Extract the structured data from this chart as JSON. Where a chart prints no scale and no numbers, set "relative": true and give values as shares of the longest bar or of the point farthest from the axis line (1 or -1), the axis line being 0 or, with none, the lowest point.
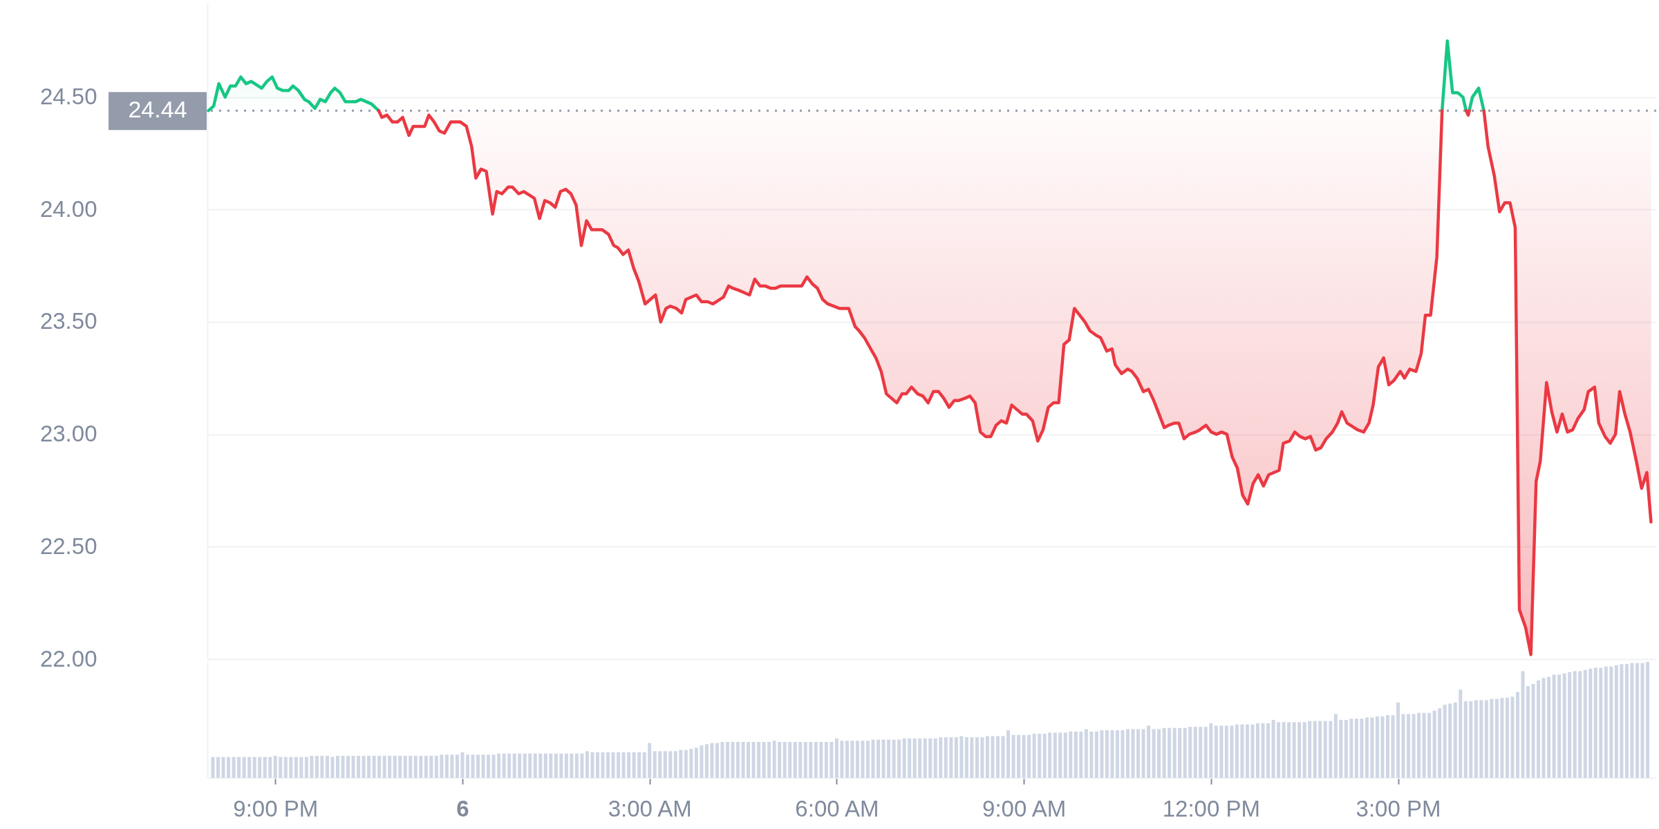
{
  "chart_data": [
    {
      "type": "line",
      "series": [
        {
          "color": "#16c784",
          "x": [
            "--01-05T19:59",
            "--01-05T20:04",
            "--01-05T20:09",
            "--01-05T20:15",
            "--01-05T20:20",
            "--01-05T20:25",
            "--01-05T20:30",
            "--01-05T20:35",
            "--01-05T20:40",
            "--01-05T20:50",
            "--01-05T20:55",
            "--01-05T21:00",
            "--01-05T21:05",
            "--01-05T21:10",
            "--01-05T21:16",
            "--01-05T21:20",
            "--01-05T21:25",
            "--01-05T21:31",
            "--01-05T21:35",
            "--01-05T21:41",
            "--01-05T21:46",
            "--01-05T21:51",
            "--01-05T21:56",
            "--01-05T22:00",
            "--01-05T22:05",
            "--01-05T22:10",
            "--01-05T22:15",
            "--01-05T22:20",
            "--01-05T22:25",
            "--01-05T22:35",
            "--01-05T22:42",
            "--01-05T22:45",
            "--01-06T15:40",
            "--01-06T15:45",
            "--01-06T15:50",
            "--01-06T15:55",
            "--01-06T16:00",
            "--01-06T16:03",
            "--01-06T16:05",
            "--01-06T16:06",
            "--01-06T16:09",
            "--01-06T16:15",
            "--01-06T16:20"
          ],
          "values": [
            24.44,
            24.46,
            24.56,
            24.5,
            24.55,
            24.55,
            24.59,
            24.56,
            24.57,
            24.54,
            24.57,
            24.59,
            24.54,
            24.53,
            24.53,
            24.55,
            24.53,
            24.49,
            24.48,
            24.45,
            24.49,
            24.48,
            24.52,
            24.54,
            24.52,
            24.48,
            24.48,
            24.48,
            24.49,
            24.47,
            24.44,
            null,
            24.44,
            24.75,
            24.52,
            24.52,
            24.5,
            24.44,
            null,
            24.44,
            24.5,
            24.54,
            24.44
          ],
          "lower": [
            24.44,
            24.44,
            24.44,
            24.44,
            24.44,
            24.44,
            24.44,
            24.44,
            24.44,
            24.44,
            24.44,
            24.44,
            24.44,
            24.44,
            24.44,
            24.44,
            24.44,
            24.44,
            24.44,
            24.44,
            24.44,
            24.44,
            24.44,
            24.44,
            24.44,
            24.44,
            24.44,
            24.44,
            24.44,
            24.44,
            24.44,
            null,
            24.44,
            24.44,
            24.44,
            24.44,
            24.44,
            24.44,
            null,
            24.44,
            24.44,
            24.44,
            24.44
          ],
          "upper": [
            24.44,
            24.46,
            24.56,
            24.5,
            24.55,
            24.55,
            24.59,
            24.56,
            24.57,
            24.54,
            24.57,
            24.59,
            24.54,
            24.53,
            24.53,
            24.55,
            24.53,
            24.49,
            24.48,
            24.45,
            24.49,
            24.48,
            24.52,
            24.54,
            24.52,
            24.48,
            24.48,
            24.48,
            24.49,
            24.47,
            24.44,
            null,
            24.44,
            24.75,
            24.52,
            24.52,
            24.5,
            24.44,
            null,
            24.44,
            24.5,
            24.54,
            24.44
          ]
        },
        {
          "color": "#ea3943",
          "x": [
            "--01-05T22:42",
            "--01-05T22:45",
            "--01-05T22:50",
            "--01-05T22:55",
            "--01-05T23:00",
            "--01-05T23:05",
            "--01-05T23:11",
            "--01-05T23:15",
            "--01-05T23:21",
            "--01-05T23:26",
            "--01-05T23:30",
            "--01-05T23:35",
            "--01-05T23:40",
            "--01-05T23:45",
            "--01-05T23:51",
            "--01-06T00:00",
            "--01-06T00:06",
            "--01-06T00:11",
            "--01-06T00:15",
            "--01-06T00:20",
            "--01-06T00:25",
            "--01-06T00:31",
            "--01-06T00:35",
            "--01-06T00:40",
            "--01-06T00:46",
            "--01-06T00:50",
            "--01-06T00:56",
            "--01-06T01:01",
            "--01-06T01:11",
            "--01-06T01:16",
            "--01-06T01:21",
            "--01-06T01:26",
            "--01-06T01:31",
            "--01-06T01:36",
            "--01-06T01:41",
            "--01-06T01:46",
            "--01-06T01:51",
            "--01-06T01:56",
            "--01-06T02:01",
            "--01-06T02:06",
            "--01-06T02:12",
            "--01-06T02:16",
            "--01-06T02:22",
            "--01-06T02:27",
            "--01-06T02:31",
            "--01-06T02:36",
            "--01-06T02:41",
            "--01-06T02:46",
            "--01-06T02:51",
            "--01-06T02:57",
            "--01-06T03:07",
            "--01-06T03:12",
            "--01-06T03:17",
            "--01-06T03:21",
            "--01-06T03:27",
            "--01-06T03:32",
            "--01-06T03:36",
            "--01-06T03:41",
            "--01-06T03:46",
            "--01-06T03:51",
            "--01-06T03:57",
            "--01-06T04:02",
            "--01-06T04:12",
            "--01-06T04:17",
            "--01-06T04:21",
            "--01-06T04:27",
            "--01-06T04:37",
            "--01-06T04:42",
            "--01-06T04:47",
            "--01-06T04:52",
            "--01-06T04:57",
            "--01-06T05:02",
            "--01-06T05:07",
            "--01-06T05:17",
            "--01-06T05:27",
            "--01-06T05:32",
            "--01-06T05:37",
            "--01-06T05:42",
            "--01-06T05:47",
            "--01-06T05:52",
            "--01-06T06:03",
            "--01-06T06:12",
            "--01-06T06:18",
            "--01-06T06:22",
            "--01-06T06:27",
            "--01-06T06:33",
            "--01-06T06:38",
            "--01-06T06:43",
            "--01-06T06:48",
            "--01-06T06:53",
            "--01-06T06:58",
            "--01-06T07:03",
            "--01-06T07:07",
            "--01-06T07:12",
            "--01-06T07:18",
            "--01-06T07:23",
            "--01-06T07:28",
            "--01-06T07:33",
            "--01-06T07:38",
            "--01-06T07:43",
            "--01-06T07:48",
            "--01-06T07:53",
            "--01-06T07:57",
            "--01-06T08:03",
            "--01-06T08:08",
            "--01-06T08:13",
            "--01-06T08:18",
            "--01-06T08:23",
            "--01-06T08:28",
            "--01-06T08:33",
            "--01-06T08:38",
            "--01-06T08:43",
            "--01-06T08:48",
            "--01-06T08:58",
            "--01-06T09:02",
            "--01-06T09:08",
            "--01-06T09:13",
            "--01-06T09:18",
            "--01-06T09:23",
            "--01-06T09:28",
            "--01-06T09:33",
            "--01-06T09:38",
            "--01-06T09:43",
            "--01-06T09:48",
            "--01-06T09:53",
            "--01-06T09:58",
            "--01-06T10:03",
            "--01-06T10:09",
            "--01-06T10:13",
            "--01-06T10:19",
            "--01-06T10:24",
            "--01-06T10:27",
            "--01-06T10:33",
            "--01-06T10:39",
            "--01-06T10:43",
            "--01-06T10:48",
            "--01-06T10:54",
            "--01-06T10:59",
            "--01-06T11:04",
            "--01-06T11:14",
            "--01-06T11:18",
            "--01-06T11:24",
            "--01-06T11:28",
            "--01-06T11:33",
            "--01-06T11:38",
            "--01-06T11:44",
            "--01-06T11:48",
            "--01-06T11:54",
            "--01-06T11:59",
            "--01-06T12:04",
            "--01-06T12:09",
            "--01-06T12:14",
            "--01-06T12:19",
            "--01-06T12:24",
            "--01-06T12:29",
            "--01-06T12:34",
            "--01-06T12:39",
            "--01-06T12:44",
            "--01-06T12:49",
            "--01-06T12:54",
            "--01-06T13:04",
            "--01-06T13:08",
            "--01-06T13:14",
            "--01-06T13:19",
            "--01-06T13:24",
            "--01-06T13:29",
            "--01-06T13:34",
            "--01-06T13:39",
            "--01-06T13:44",
            "--01-06T13:49",
            "--01-06T13:55",
            "--01-06T14:00",
            "--01-06T14:04",
            "--01-06T14:09",
            "--01-06T14:19",
            "--01-06T14:25",
            "--01-06T14:30",
            "--01-06T14:34",
            "--01-06T14:39",
            "--01-06T14:44",
            "--01-06T14:49",
            "--01-06T14:54",
            "--01-06T15:00",
            "--01-06T15:04",
            "--01-06T15:09",
            "--01-06T15:15",
            "--01-06T15:20",
            "--01-06T15:24",
            "--01-06T15:29",
            "--01-06T15:35",
            "--01-06T15:40",
            "--01-06T15:45",
            "--01-06T16:03",
            "--01-06T16:05",
            "--01-06T16:06",
            "--01-06T16:09",
            "--01-06T16:20",
            "--01-06T16:24",
            "--01-06T16:30",
            "--01-06T16:35",
            "--01-06T16:40",
            "--01-06T16:45",
            "--01-06T16:50",
            "--01-06T16:54",
            "--01-06T17:00",
            "--01-06T17:05",
            "--01-06T17:10",
            "--01-06T17:14",
            "--01-06T17:20",
            "--01-06T17:25",
            "--01-06T17:30",
            "--01-06T17:35",
            "--01-06T17:40",
            "--01-06T17:45",
            "--01-06T17:50",
            "--01-06T17:56",
            "--01-06T18:00",
            "--01-06T18:06",
            "--01-06T18:10",
            "--01-06T18:16",
            "--01-06T18:21",
            "--01-06T18:26",
            "--01-06T18:30",
            "--01-06T18:35",
            "--01-06T18:40",
            "--01-06T18:46",
            "--01-06T18:51",
            "--01-06T18:56",
            "--01-06T19:00"
          ],
          "values": [
            24.44,
            24.41,
            24.42,
            24.39,
            24.39,
            24.41,
            24.33,
            24.37,
            24.37,
            24.37,
            24.42,
            24.39,
            24.35,
            24.34,
            24.39,
            24.39,
            24.37,
            24.28,
            24.14,
            24.18,
            24.17,
            23.98,
            24.08,
            24.07,
            24.1,
            24.1,
            24.07,
            24.08,
            24.05,
            23.96,
            24.04,
            24.03,
            24.01,
            24.08,
            24.09,
            24.07,
            24.02,
            23.84,
            23.95,
            23.91,
            23.91,
            23.91,
            23.89,
            23.84,
            23.83,
            23.8,
            23.82,
            23.74,
            23.68,
            23.58,
            23.62,
            23.5,
            23.56,
            23.57,
            23.56,
            23.54,
            23.6,
            23.61,
            23.62,
            23.59,
            23.59,
            23.58,
            23.61,
            23.66,
            23.65,
            23.64,
            23.62,
            23.69,
            23.66,
            23.66,
            23.65,
            23.65,
            23.66,
            23.66,
            23.66,
            23.7,
            23.67,
            23.65,
            23.6,
            23.58,
            23.56,
            23.56,
            23.48,
            23.46,
            23.43,
            23.38,
            23.34,
            23.28,
            23.18,
            23.16,
            23.14,
            23.18,
            23.18,
            23.21,
            23.18,
            23.17,
            23.14,
            23.19,
            23.19,
            23.16,
            23.12,
            23.15,
            23.15,
            23.16,
            23.17,
            23.14,
            23.01,
            22.99,
            22.99,
            23.04,
            23.06,
            23.05,
            23.13,
            23.09,
            23.09,
            23.06,
            22.97,
            23.02,
            23.12,
            23.14,
            23.14,
            23.4,
            23.42,
            23.56,
            23.53,
            23.5,
            23.46,
            23.44,
            23.43,
            23.37,
            23.38,
            23.31,
            23.27,
            23.29,
            23.28,
            23.25,
            23.19,
            23.2,
            23.15,
            23.03,
            23.04,
            23.05,
            23.05,
            22.98,
            23.0,
            23.01,
            23.02,
            23.04,
            23.01,
            23.0,
            23.01,
            23.0,
            22.9,
            22.85,
            22.73,
            22.69,
            22.78,
            22.82,
            22.77,
            22.82,
            22.84,
            22.96,
            22.97,
            23.01,
            22.99,
            22.98,
            22.99,
            22.93,
            22.94,
            22.98,
            23.01,
            23.05,
            23.1,
            23.05,
            23.02,
            23.01,
            23.05,
            23.13,
            23.3,
            23.34,
            23.22,
            23.24,
            23.28,
            23.25,
            23.29,
            23.28,
            23.36,
            23.53,
            23.53,
            23.79,
            24.44,
            null,
            24.44,
            24.42,
            24.44,
            null,
            24.44,
            24.28,
            24.15,
            23.99,
            24.03,
            24.03,
            23.92,
            22.22,
            22.14,
            22.02,
            22.79,
            22.88,
            23.23,
            23.1,
            23.01,
            23.09,
            23.01,
            23.02,
            23.07,
            23.11,
            23.19,
            23.21,
            23.05,
            22.99,
            22.96,
            23.0,
            23.19,
            23.09,
            23.01,
            22.88,
            22.76,
            22.83,
            22.61
          ],
          "lower": [
            24.44,
            24.41,
            24.42,
            24.39,
            24.39,
            24.41,
            24.33,
            24.37,
            24.37,
            24.37,
            24.42,
            24.39,
            24.35,
            24.34,
            24.39,
            24.39,
            24.37,
            24.28,
            24.14,
            24.18,
            24.17,
            23.98,
            24.08,
            24.07,
            24.1,
            24.1,
            24.07,
            24.08,
            24.05,
            23.96,
            24.04,
            24.03,
            24.01,
            24.08,
            24.09,
            24.07,
            24.02,
            23.84,
            23.95,
            23.91,
            23.91,
            23.91,
            23.89,
            23.84,
            23.83,
            23.8,
            23.82,
            23.74,
            23.68,
            23.58,
            23.62,
            23.5,
            23.56,
            23.57,
            23.56,
            23.54,
            23.6,
            23.61,
            23.62,
            23.59,
            23.59,
            23.58,
            23.61,
            23.66,
            23.65,
            23.64,
            23.62,
            23.69,
            23.66,
            23.66,
            23.65,
            23.65,
            23.66,
            23.66,
            23.66,
            23.7,
            23.67,
            23.65,
            23.6,
            23.58,
            23.56,
            23.56,
            23.48,
            23.46,
            23.43,
            23.38,
            23.34,
            23.28,
            23.18,
            23.16,
            23.14,
            23.18,
            23.18,
            23.21,
            23.18,
            23.17,
            23.14,
            23.19,
            23.19,
            23.16,
            23.12,
            23.15,
            23.15,
            23.16,
            23.17,
            23.14,
            23.01,
            22.99,
            22.99,
            23.04,
            23.06,
            23.05,
            23.13,
            23.09,
            23.09,
            23.06,
            22.97,
            23.02,
            23.12,
            23.14,
            23.14,
            23.4,
            23.42,
            23.56,
            23.53,
            23.5,
            23.46,
            23.44,
            23.43,
            23.37,
            23.38,
            23.31,
            23.27,
            23.29,
            23.28,
            23.25,
            23.19,
            23.2,
            23.15,
            23.03,
            23.04,
            23.05,
            23.05,
            22.98,
            23.0,
            23.01,
            23.02,
            23.04,
            23.01,
            23.0,
            23.01,
            23.0,
            22.9,
            22.85,
            22.73,
            22.69,
            22.78,
            22.82,
            22.77,
            22.82,
            22.84,
            22.96,
            22.97,
            23.01,
            22.99,
            22.98,
            22.99,
            22.93,
            22.94,
            22.98,
            23.01,
            23.05,
            23.1,
            23.05,
            23.02,
            23.01,
            23.05,
            23.13,
            23.3,
            23.34,
            23.22,
            23.24,
            23.28,
            23.25,
            23.29,
            23.28,
            23.36,
            23.53,
            23.53,
            23.79,
            24.44,
            null,
            null,
            null,
            null,
            null,
            24.44,
            24.28,
            24.15,
            23.99,
            24.03,
            24.03,
            23.92,
            22.22,
            22.14,
            22.02,
            22.79,
            22.88,
            23.23,
            23.1,
            23.01,
            23.09,
            23.01,
            23.02,
            23.07,
            23.11,
            23.19,
            23.21,
            23.05,
            22.99,
            22.96,
            23.0,
            23.19,
            23.09,
            23.01,
            22.88,
            22.76,
            22.83,
            22.61
          ],
          "upper": [
            24.44,
            24.44,
            24.44,
            24.44,
            24.44,
            24.44,
            24.44,
            24.44,
            24.44,
            24.44,
            24.44,
            24.44,
            24.44,
            24.44,
            24.44,
            24.44,
            24.44,
            24.44,
            24.44,
            24.44,
            24.44,
            24.44,
            24.44,
            24.44,
            24.44,
            24.44,
            24.44,
            24.44,
            24.44,
            24.44,
            24.44,
            24.44,
            24.44,
            24.44,
            24.44,
            24.44,
            24.44,
            24.44,
            24.44,
            24.44,
            24.44,
            24.44,
            24.44,
            24.44,
            24.44,
            24.44,
            24.44,
            24.44,
            24.44,
            24.44,
            24.44,
            24.44,
            24.44,
            24.44,
            24.44,
            24.44,
            24.44,
            24.44,
            24.44,
            24.44,
            24.44,
            24.44,
            24.44,
            24.44,
            24.44,
            24.44,
            24.44,
            24.44,
            24.44,
            24.44,
            24.44,
            24.44,
            24.44,
            24.44,
            24.44,
            24.44,
            24.44,
            24.44,
            24.44,
            24.44,
            24.44,
            24.44,
            24.44,
            24.44,
            24.44,
            24.44,
            24.44,
            24.44,
            24.44,
            24.44,
            24.44,
            24.44,
            24.44,
            24.44,
            24.44,
            24.44,
            24.44,
            24.44,
            24.44,
            24.44,
            24.44,
            24.44,
            24.44,
            24.44,
            24.44,
            24.44,
            24.44,
            24.44,
            24.44,
            24.44,
            24.44,
            24.44,
            24.44,
            24.44,
            24.44,
            24.44,
            24.44,
            24.44,
            24.44,
            24.44,
            24.44,
            24.44,
            24.44,
            24.44,
            24.44,
            24.44,
            24.44,
            24.44,
            24.44,
            24.44,
            24.44,
            24.44,
            24.44,
            24.44,
            24.44,
            24.44,
            24.44,
            24.44,
            24.44,
            24.44,
            24.44,
            24.44,
            24.44,
            24.44,
            24.44,
            24.44,
            24.44,
            24.44,
            24.44,
            24.44,
            24.44,
            24.44,
            24.44,
            24.44,
            24.44,
            24.44,
            24.44,
            24.44,
            24.44,
            24.44,
            24.44,
            24.44,
            24.44,
            24.44,
            24.44,
            24.44,
            24.44,
            24.44,
            24.44,
            24.44,
            24.44,
            24.44,
            24.44,
            24.44,
            24.44,
            24.44,
            24.44,
            24.44,
            24.44,
            24.44,
            24.44,
            24.44,
            24.44,
            24.44,
            24.44,
            24.44,
            24.44,
            24.44,
            24.44,
            24.44,
            24.44,
            null,
            null,
            null,
            null,
            null,
            24.44,
            24.44,
            24.44,
            24.44,
            24.44,
            24.44,
            24.44,
            24.44,
            24.44,
            24.44,
            24.44,
            24.44,
            24.44,
            24.44,
            24.44,
            24.44,
            24.44,
            24.44,
            24.44,
            24.44,
            24.44,
            24.44,
            24.44,
            24.44,
            24.44,
            24.44,
            24.44,
            24.44,
            24.44,
            24.44,
            24.44,
            24.44,
            24.44
          ]
        }
      ],
      "xlim": [
        "--01-05T19:58",
        "--01-06T19:05"
      ],
      "ylim": [
        22.0,
        24.92
      ],
      "yticks": [
        {
          "value": 22,
          "label": "22.00"
        },
        {
          "value": 22.5,
          "label": "22.50"
        },
        {
          "value": 23,
          "label": "23.00"
        },
        {
          "value": 23.5,
          "label": "23.50"
        },
        {
          "value": 24,
          "label": "24.00"
        },
        {
          "value": 24.5,
          "label": "24.50"
        }
      ],
      "tick_labels": "y",
      "grid": "y",
      "ref_lines": [
        {
          "axis": "y",
          "value": 24.44,
          "label": "24.44",
          "color": "#949cab",
          "line_style": "dotted"
        }
      ]
    },
    {
      "type": "bar",
      "relative": true,
      "color": "#cfd6e4",
      "x": [
        "--01-05T20:00",
        "--01-05T20:05",
        "--01-05T20:10",
        "--01-05T20:15",
        "--01-05T20:20",
        "--01-05T20:25",
        "--01-05T20:30",
        "--01-05T20:35",
        "--01-05T20:40",
        "--01-05T20:45",
        "--01-05T20:50",
        "--01-05T20:55",
        "--01-05T21:00",
        "--01-05T21:05",
        "--01-05T21:10",
        "--01-05T21:15",
        "--01-05T21:20",
        "--01-05T21:25",
        "--01-05T21:30",
        "--01-05T21:35",
        "--01-05T21:40",
        "--01-05T21:45",
        "--01-05T21:50",
        "--01-05T21:55",
        "--01-05T22:00",
        "--01-05T22:05",
        "--01-05T22:10",
        "--01-05T22:15",
        "--01-05T22:20",
        "--01-05T22:25",
        "--01-05T22:30",
        "--01-05T22:35",
        "--01-05T22:40",
        "--01-05T22:45",
        "--01-05T22:50",
        "--01-05T22:55",
        "--01-05T23:00",
        "--01-05T23:05",
        "--01-05T23:10",
        "--01-05T23:15",
        "--01-05T23:20",
        "--01-05T23:25",
        "--01-05T23:30",
        "--01-05T23:35",
        "--01-05T23:40",
        "--01-05T23:45",
        "--01-05T23:50",
        "--01-05T23:55",
        "--01-06T00:00",
        "--01-06T00:05",
        "--01-06T00:10",
        "--01-06T00:15",
        "--01-06T00:20",
        "--01-06T00:25",
        "--01-06T00:30",
        "--01-06T00:35",
        "--01-06T00:40",
        "--01-06T00:45",
        "--01-06T00:50",
        "--01-06T00:55",
        "--01-06T01:00",
        "--01-06T01:05",
        "--01-06T01:10",
        "--01-06T01:15",
        "--01-06T01:20",
        "--01-06T01:25",
        "--01-06T01:30",
        "--01-06T01:35",
        "--01-06T01:40",
        "--01-06T01:45",
        "--01-06T01:50",
        "--01-06T01:55",
        "--01-06T02:00",
        "--01-06T02:05",
        "--01-06T02:10",
        "--01-06T02:15",
        "--01-06T02:20",
        "--01-06T02:25",
        "--01-06T02:30",
        "--01-06T02:35",
        "--01-06T02:40",
        "--01-06T02:45",
        "--01-06T02:50",
        "--01-06T02:55",
        "--01-06T03:00",
        "--01-06T03:05",
        "--01-06T03:10",
        "--01-06T03:15",
        "--01-06T03:20",
        "--01-06T03:25",
        "--01-06T03:30",
        "--01-06T03:35",
        "--01-06T03:40",
        "--01-06T03:45",
        "--01-06T03:50",
        "--01-06T03:55",
        "--01-06T04:00",
        "--01-06T04:05",
        "--01-06T04:10",
        "--01-06T04:15",
        "--01-06T04:20",
        "--01-06T04:25",
        "--01-06T04:30",
        "--01-06T04:35",
        "--01-06T04:40",
        "--01-06T04:45",
        "--01-06T04:50",
        "--01-06T04:55",
        "--01-06T05:00",
        "--01-06T05:05",
        "--01-06T05:10",
        "--01-06T05:15",
        "--01-06T05:20",
        "--01-06T05:25",
        "--01-06T05:30",
        "--01-06T05:35",
        "--01-06T05:40",
        "--01-06T05:45",
        "--01-06T05:50",
        "--01-06T05:55",
        "--01-06T06:00",
        "--01-06T06:05",
        "--01-06T06:10",
        "--01-06T06:15",
        "--01-06T06:20",
        "--01-06T06:25",
        "--01-06T06:30",
        "--01-06T06:35",
        "--01-06T06:40",
        "--01-06T06:45",
        "--01-06T06:50",
        "--01-06T06:55",
        "--01-06T07:00",
        "--01-06T07:05",
        "--01-06T07:10",
        "--01-06T07:15",
        "--01-06T07:20",
        "--01-06T07:25",
        "--01-06T07:30",
        "--01-06T07:35",
        "--01-06T07:40",
        "--01-06T07:45",
        "--01-06T07:50",
        "--01-06T07:55",
        "--01-06T08:00",
        "--01-06T08:05",
        "--01-06T08:10",
        "--01-06T08:15",
        "--01-06T08:20",
        "--01-06T08:25",
        "--01-06T08:30",
        "--01-06T08:35",
        "--01-06T08:40",
        "--01-06T08:45",
        "--01-06T08:50",
        "--01-06T08:55",
        "--01-06T09:00",
        "--01-06T09:05",
        "--01-06T09:10",
        "--01-06T09:15",
        "--01-06T09:20",
        "--01-06T09:25",
        "--01-06T09:30",
        "--01-06T09:35",
        "--01-06T09:40",
        "--01-06T09:45",
        "--01-06T09:50",
        "--01-06T09:55",
        "--01-06T10:00",
        "--01-06T10:05",
        "--01-06T10:10",
        "--01-06T10:15",
        "--01-06T10:20",
        "--01-06T10:25",
        "--01-06T10:30",
        "--01-06T10:35",
        "--01-06T10:40",
        "--01-06T10:45",
        "--01-06T10:50",
        "--01-06T10:55",
        "--01-06T11:00",
        "--01-06T11:05",
        "--01-06T11:10",
        "--01-06T11:15",
        "--01-06T11:20",
        "--01-06T11:25",
        "--01-06T11:30",
        "--01-06T11:35",
        "--01-06T11:40",
        "--01-06T11:45",
        "--01-06T11:50",
        "--01-06T11:55",
        "--01-06T12:00",
        "--01-06T12:05",
        "--01-06T12:10",
        "--01-06T12:15",
        "--01-06T12:20",
        "--01-06T12:25",
        "--01-06T12:30",
        "--01-06T12:35",
        "--01-06T12:40",
        "--01-06T12:45",
        "--01-06T12:50",
        "--01-06T12:55",
        "--01-06T13:00",
        "--01-06T13:05",
        "--01-06T13:10",
        "--01-06T13:15",
        "--01-06T13:20",
        "--01-06T13:25",
        "--01-06T13:30",
        "--01-06T13:35",
        "--01-06T13:40",
        "--01-06T13:45",
        "--01-06T13:50",
        "--01-06T13:55",
        "--01-06T14:00",
        "--01-06T14:05",
        "--01-06T14:10",
        "--01-06T14:15",
        "--01-06T14:20",
        "--01-06T14:25",
        "--01-06T14:30",
        "--01-06T14:35",
        "--01-06T14:40",
        "--01-06T14:45",
        "--01-06T14:50",
        "--01-06T14:55",
        "--01-06T15:00",
        "--01-06T15:05",
        "--01-06T15:10",
        "--01-06T15:15",
        "--01-06T15:20",
        "--01-06T15:25",
        "--01-06T15:30",
        "--01-06T15:35",
        "--01-06T15:40",
        "--01-06T15:45",
        "--01-06T15:50",
        "--01-06T15:55",
        "--01-06T16:00",
        "--01-06T16:05",
        "--01-06T16:10",
        "--01-06T16:15",
        "--01-06T16:20",
        "--01-06T16:25",
        "--01-06T16:30",
        "--01-06T16:35",
        "--01-06T16:40",
        "--01-06T16:45",
        "--01-06T16:50",
        "--01-06T16:55",
        "--01-06T17:00",
        "--01-06T17:05",
        "--01-06T17:10",
        "--01-06T17:15",
        "--01-06T17:20",
        "--01-06T17:25",
        "--01-06T17:30",
        "--01-06T17:35",
        "--01-06T17:40",
        "--01-06T17:45",
        "--01-06T17:50",
        "--01-06T17:55",
        "--01-06T18:00",
        "--01-06T18:05",
        "--01-06T18:10",
        "--01-06T18:15",
        "--01-06T18:20",
        "--01-06T18:25",
        "--01-06T18:30",
        "--01-06T18:35",
        "--01-06T18:40",
        "--01-06T18:45",
        "--01-06T18:50",
        "--01-06T18:55",
        "--01-06T19:00"
      ],
      "values": [
        0.18,
        0.18,
        0.18,
        0.18,
        0.18,
        0.18,
        0.18,
        0.18,
        0.18,
        0.18,
        0.18,
        0.18,
        0.19,
        0.18,
        0.18,
        0.18,
        0.18,
        0.18,
        0.18,
        0.19,
        0.19,
        0.19,
        0.19,
        0.18,
        0.19,
        0.19,
        0.19,
        0.19,
        0.19,
        0.19,
        0.19,
        0.19,
        0.19,
        0.19,
        0.19,
        0.19,
        0.19,
        0.19,
        0.19,
        0.19,
        0.19,
        0.19,
        0.19,
        0.19,
        0.2,
        0.2,
        0.2,
        0.2,
        0.22,
        0.2,
        0.2,
        0.2,
        0.2,
        0.2,
        0.2,
        0.21,
        0.21,
        0.21,
        0.21,
        0.21,
        0.21,
        0.21,
        0.21,
        0.21,
        0.21,
        0.21,
        0.21,
        0.21,
        0.21,
        0.21,
        0.21,
        0.21,
        0.23,
        0.22,
        0.22,
        0.22,
        0.22,
        0.22,
        0.22,
        0.22,
        0.22,
        0.22,
        0.22,
        0.22,
        0.3,
        0.23,
        0.23,
        0.23,
        0.23,
        0.23,
        0.24,
        0.24,
        0.25,
        0.26,
        0.28,
        0.29,
        0.3,
        0.3,
        0.31,
        0.31,
        0.31,
        0.31,
        0.31,
        0.31,
        0.31,
        0.31,
        0.31,
        0.31,
        0.32,
        0.31,
        0.31,
        0.31,
        0.31,
        0.31,
        0.31,
        0.31,
        0.31,
        0.31,
        0.31,
        0.31,
        0.34,
        0.32,
        0.32,
        0.32,
        0.32,
        0.32,
        0.32,
        0.33,
        0.33,
        0.33,
        0.33,
        0.33,
        0.33,
        0.34,
        0.34,
        0.34,
        0.34,
        0.34,
        0.34,
        0.34,
        0.35,
        0.35,
        0.35,
        0.35,
        0.36,
        0.35,
        0.35,
        0.35,
        0.35,
        0.36,
        0.36,
        0.36,
        0.36,
        0.41,
        0.37,
        0.37,
        0.37,
        0.37,
        0.38,
        0.38,
        0.38,
        0.39,
        0.39,
        0.39,
        0.39,
        0.4,
        0.4,
        0.4,
        0.42,
        0.4,
        0.4,
        0.41,
        0.41,
        0.41,
        0.41,
        0.41,
        0.42,
        0.42,
        0.42,
        0.42,
        0.45,
        0.42,
        0.42,
        0.43,
        0.43,
        0.43,
        0.43,
        0.43,
        0.44,
        0.44,
        0.44,
        0.44,
        0.47,
        0.45,
        0.45,
        0.45,
        0.45,
        0.46,
        0.46,
        0.46,
        0.46,
        0.47,
        0.47,
        0.47,
        0.5,
        0.48,
        0.48,
        0.48,
        0.48,
        0.48,
        0.48,
        0.49,
        0.49,
        0.49,
        0.49,
        0.49,
        0.55,
        0.5,
        0.5,
        0.51,
        0.51,
        0.51,
        0.52,
        0.52,
        0.53,
        0.53,
        0.54,
        0.54,
        0.65,
        0.55,
        0.55,
        0.55,
        0.56,
        0.56,
        0.56,
        0.58,
        0.6,
        0.63,
        0.64,
        0.65,
        0.76,
        0.66,
        0.66,
        0.67,
        0.67,
        0.67,
        0.68,
        0.68,
        0.69,
        0.69,
        0.7,
        0.74,
        0.92,
        0.79,
        0.81,
        0.84,
        0.86,
        0.87,
        0.89,
        0.89,
        0.9,
        0.91,
        0.92,
        0.92,
        0.93,
        0.94,
        0.95,
        0.95,
        0.96,
        0.96,
        0.97,
        0.98,
        0.98,
        0.99,
        0.99,
        0.99,
        1
      ],
      "xlim": [
        "--01-05T19:58",
        "--01-06T19:05"
      ],
      "xticks": [
        {
          "value": "--01-05T21:00",
          "label": "9:00 PM"
        },
        {
          "value": "--01-06T00:00",
          "label": "6"
        },
        {
          "value": "--01-06T03:00",
          "label": "3:00 AM"
        },
        {
          "value": "--01-06T06:00",
          "label": "6:00 AM"
        },
        {
          "value": "--01-06T09:00",
          "label": "9:00 AM"
        },
        {
          "value": "--01-06T12:00",
          "label": "12:00 PM"
        },
        {
          "value": "--01-06T15:00",
          "label": "3:00 PM"
        }
      ]
    }
  ]
}
